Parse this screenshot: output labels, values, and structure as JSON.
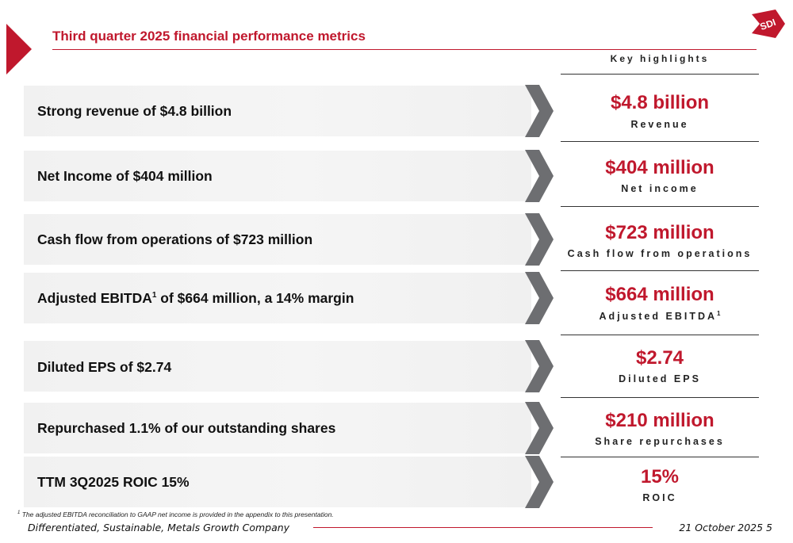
{
  "header": {
    "title": "Third quarter 2025 financial performance metrics",
    "logo_text": "SDI"
  },
  "highlights_heading": "Key highlights",
  "rows": [
    {
      "text": "Strong revenue of $4.8 billion",
      "value": "$4.8 billion",
      "label": "Revenue"
    },
    {
      "text": "Net Income of $404 million",
      "value": "$404 million",
      "label": "Net income"
    },
    {
      "text": "Cash flow from operations of $723 million",
      "value": "$723 million",
      "label": "Cash flow from operations"
    },
    {
      "text_before": "Adjusted EBITDA",
      "text_sup": "1",
      "text_after": " of $664 million, a 14% margin",
      "value": "$664 million",
      "label": "Adjusted EBITDA",
      "label_sup": "1"
    },
    {
      "text": "Diluted EPS of $2.74",
      "value": "$2.74",
      "label": "Diluted EPS"
    },
    {
      "text": "Repurchased 1.1% of our outstanding shares",
      "value": "$210 million",
      "label": "Share repurchases"
    },
    {
      "text": "TTM 3Q2025 ROIC 15%",
      "value": "15%",
      "label": "ROIC"
    }
  ],
  "footnote": {
    "marker": "1",
    "text": " The adjusted EBITDA reconciliation to GAAP net income is provided in the appendix to this presentation."
  },
  "footer": {
    "tagline": "Differentiated, Sustainable, Metals Growth Company",
    "date_page": "21 October 2025  5"
  },
  "colors": {
    "accent": "#c0182d",
    "chevron": "#6d6e71"
  }
}
